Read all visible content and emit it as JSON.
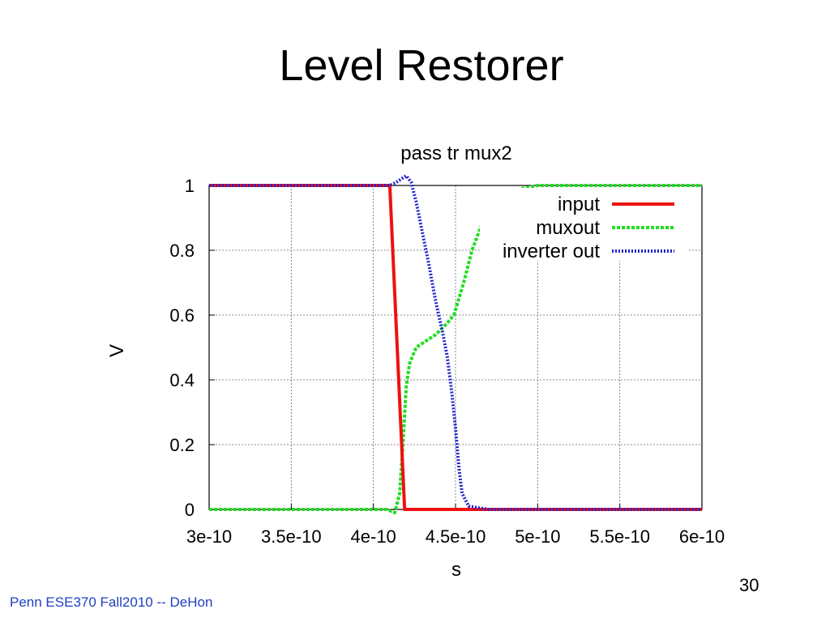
{
  "slide": {
    "title": "Level Restorer",
    "footer": "Penn ESE370 Fall2010 -- DeHon",
    "page_number": "30"
  },
  "chart_data": {
    "type": "line",
    "title": "pass tr mux2",
    "xlabel": "s",
    "ylabel": "V",
    "xlim": [
      3e-10,
      6e-10
    ],
    "ylim": [
      0,
      1
    ],
    "x_ticks": [
      3e-10,
      3.5e-10,
      4e-10,
      4.5e-10,
      5e-10,
      5.5e-10,
      6e-10
    ],
    "x_tick_labels": [
      "3e-10",
      "3.5e-10",
      "4e-10",
      "4.5e-10",
      "5e-10",
      "5.5e-10",
      "6e-10"
    ],
    "y_ticks": [
      0,
      0.2,
      0.4,
      0.6,
      0.8,
      1
    ],
    "y_tick_labels": [
      "0",
      "0.2",
      "0.4",
      "0.6",
      "0.8",
      "1"
    ],
    "grid": true,
    "legend_position": "top-right",
    "series": [
      {
        "name": "input",
        "color": "#ee1111",
        "style": "solid",
        "points": [
          [
            3e-10,
            1
          ],
          [
            4.1e-10,
            1
          ],
          [
            4.19e-10,
            0
          ],
          [
            6e-10,
            0
          ]
        ]
      },
      {
        "name": "muxout",
        "color": "#22dd22",
        "style": "dashed",
        "points": [
          [
            3e-10,
            0
          ],
          [
            4.08e-10,
            0
          ],
          [
            4.13e-10,
            -0.01
          ],
          [
            4.16e-10,
            0.05
          ],
          [
            4.18e-10,
            0.2
          ],
          [
            4.2e-10,
            0.38
          ],
          [
            4.22e-10,
            0.45
          ],
          [
            4.26e-10,
            0.5
          ],
          [
            4.32e-10,
            0.52
          ],
          [
            4.38e-10,
            0.54
          ],
          [
            4.44e-10,
            0.57
          ],
          [
            4.49e-10,
            0.6
          ],
          [
            4.55e-10,
            0.7
          ],
          [
            4.6e-10,
            0.8
          ],
          [
            4.66e-10,
            0.88
          ],
          [
            4.72e-10,
            0.93
          ],
          [
            4.8e-10,
            0.97
          ],
          [
            4.9e-10,
            0.99
          ],
          [
            5e-10,
            1
          ],
          [
            6e-10,
            1
          ]
        ]
      },
      {
        "name": "inverter out",
        "color": "#2222cc",
        "style": "dotted",
        "points": [
          [
            3e-10,
            1
          ],
          [
            4.1e-10,
            1
          ],
          [
            4.14e-10,
            1.01
          ],
          [
            4.2e-10,
            1.03
          ],
          [
            4.23e-10,
            1.01
          ],
          [
            4.26e-10,
            0.95
          ],
          [
            4.3e-10,
            0.85
          ],
          [
            4.34e-10,
            0.75
          ],
          [
            4.38e-10,
            0.64
          ],
          [
            4.42e-10,
            0.55
          ],
          [
            4.45e-10,
            0.47
          ],
          [
            4.48e-10,
            0.35
          ],
          [
            4.5e-10,
            0.25
          ],
          [
            4.52e-10,
            0.13
          ],
          [
            4.54e-10,
            0.05
          ],
          [
            4.58e-10,
            0.01
          ],
          [
            4.7e-10,
            0
          ],
          [
            6e-10,
            0
          ]
        ]
      }
    ]
  }
}
